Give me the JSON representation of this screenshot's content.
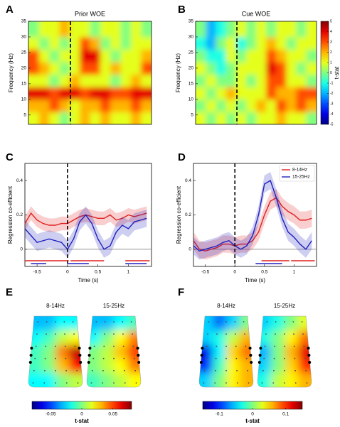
{
  "chart_data": [
    {
      "type": "heatmap",
      "label": "A",
      "title": "Prior WOE",
      "ylabel": "Frequency (Hz)",
      "xlim": [
        -0.7,
        1.35
      ],
      "ylim": [
        2,
        35
      ],
      "yticks": [
        5,
        10,
        15,
        20,
        25,
        30,
        35
      ],
      "vline": 0,
      "x": [
        -0.61,
        -0.44,
        -0.27,
        -0.1,
        0.07,
        0.24,
        0.41,
        0.58,
        0.75,
        0.92,
        1.09,
        1.26
      ],
      "y": [
        4,
        8,
        12,
        16,
        20,
        24,
        28,
        32
      ],
      "z": [
        [
          1,
          2,
          1,
          0,
          1,
          2,
          1,
          2,
          1,
          1,
          2,
          1
        ],
        [
          2,
          2,
          3,
          2,
          1,
          2,
          2,
          3,
          2,
          2,
          3,
          2
        ],
        [
          4,
          4,
          3,
          4,
          4,
          3,
          4,
          4,
          3,
          3,
          4,
          4
        ],
        [
          1,
          1,
          0,
          1,
          2,
          1,
          1,
          1,
          0,
          1,
          2,
          1
        ],
        [
          3,
          2,
          1,
          0,
          1,
          3,
          3,
          1,
          2,
          1,
          1,
          3
        ],
        [
          3,
          1,
          0,
          1,
          1,
          4,
          4,
          1,
          0,
          1,
          1,
          2
        ],
        [
          1,
          0,
          1,
          0,
          1,
          3,
          2,
          0,
          1,
          0,
          1,
          1
        ],
        [
          0,
          1,
          1,
          2,
          1,
          1,
          0,
          1,
          1,
          0,
          1,
          0
        ]
      ],
      "clim": [
        -5,
        5
      ],
      "colorbar": false
    },
    {
      "type": "heatmap",
      "label": "B",
      "title": "Cue WOE",
      "ylabel": "Frequency (Hz)",
      "xlim": [
        -0.7,
        1.35
      ],
      "ylim": [
        2,
        35
      ],
      "yticks": [
        5,
        10,
        15,
        20,
        25,
        30,
        35
      ],
      "vline": 0,
      "x": [
        -0.61,
        -0.44,
        -0.27,
        -0.1,
        0.07,
        0.24,
        0.41,
        0.58,
        0.75,
        0.92,
        1.09,
        1.26
      ],
      "y": [
        4,
        8,
        12,
        16,
        20,
        24,
        28,
        32
      ],
      "z": [
        [
          1,
          0,
          1,
          0,
          1,
          0,
          1,
          1,
          2,
          1,
          1,
          0
        ],
        [
          0,
          1,
          0,
          1,
          0,
          1,
          2,
          1,
          3,
          2,
          3,
          2
        ],
        [
          1,
          0,
          1,
          2,
          1,
          1,
          1,
          3,
          2,
          2,
          3,
          3
        ],
        [
          0,
          1,
          0,
          0,
          1,
          0,
          1,
          3,
          3,
          1,
          1,
          0
        ],
        [
          1,
          0,
          -1,
          0,
          1,
          1,
          1,
          4,
          3,
          1,
          0,
          1
        ],
        [
          0,
          -1,
          -1,
          1,
          0,
          1,
          1,
          3,
          2,
          1,
          1,
          0
        ],
        [
          -1,
          -2,
          0,
          1,
          -1,
          0,
          1,
          2,
          1,
          0,
          1,
          1
        ],
        [
          0,
          -2,
          -1,
          0,
          1,
          0,
          1,
          0,
          1,
          1,
          0,
          1
        ]
      ],
      "clim": [
        -5,
        5
      ],
      "colorbar": true,
      "cticks": [
        5,
        4,
        3,
        2,
        1,
        0,
        -1,
        -2,
        -3,
        -4,
        -5
      ],
      "colorbar_label": "t-stat"
    },
    {
      "type": "line",
      "label": "C",
      "xlabel": "Time (s)",
      "ylabel": "Regression co-efficient",
      "xlim": [
        -0.7,
        1.38
      ],
      "ylim": [
        -0.1,
        0.5
      ],
      "xticks": [
        -0.5,
        0,
        0.5,
        1
      ],
      "yticks": [
        0,
        0.2,
        0.4
      ],
      "vline": 0,
      "legend": false,
      "x": [
        -0.7,
        -0.6,
        -0.5,
        -0.4,
        -0.3,
        -0.2,
        -0.1,
        0,
        0.1,
        0.2,
        0.3,
        0.4,
        0.5,
        0.6,
        0.7,
        0.8,
        0.9,
        1.0,
        1.1,
        1.2,
        1.3
      ],
      "series": [
        {
          "color": "#e02020",
          "values": [
            0.15,
            0.21,
            0.17,
            0.15,
            0.14,
            0.14,
            0.15,
            0.15,
            0.17,
            0.19,
            0.2,
            0.19,
            0.18,
            0.18,
            0.2,
            0.17,
            0.18,
            0.2,
            0.19,
            0.2,
            0.21
          ],
          "errors": [
            0.04,
            0.04,
            0.04,
            0.04,
            0.04,
            0.04,
            0.04,
            0.04,
            0.04,
            0.04,
            0.04,
            0.04,
            0.04,
            0.04,
            0.04,
            0.04,
            0.04,
            0.04,
            0.04,
            0.04,
            0.04
          ]
        },
        {
          "color": "#2020c0",
          "values": [
            0.12,
            0.08,
            0.04,
            0.05,
            0.06,
            0.05,
            0.04,
            0.0,
            0.06,
            0.16,
            0.2,
            0.15,
            0.06,
            0.0,
            0.02,
            0.1,
            0.14,
            0.12,
            0.16,
            0.17,
            0.18
          ],
          "errors": [
            0.05,
            0.05,
            0.05,
            0.05,
            0.05,
            0.05,
            0.05,
            0.05,
            0.05,
            0.05,
            0.05,
            0.05,
            0.05,
            0.05,
            0.05,
            0.05,
            0.05,
            0.05,
            0.05,
            0.05,
            0.05
          ]
        }
      ],
      "sig_bars": [
        {
          "series": 0,
          "start": -0.7,
          "end": 0.02
        },
        {
          "series": 0,
          "start": 0.05,
          "end": 0.6
        },
        {
          "series": 0,
          "start": 0.95,
          "end": 1.35
        },
        {
          "series": 1,
          "start": -0.6,
          "end": -0.35
        },
        {
          "series": 1,
          "start": 0.0,
          "end": 0.35
        },
        {
          "series": 1,
          "start": 0.95,
          "end": 1.3
        }
      ]
    },
    {
      "type": "line",
      "label": "D",
      "xlabel": "Time (s)",
      "ylabel": "Regression co-efficient",
      "xlim": [
        -0.7,
        1.38
      ],
      "ylim": [
        -0.1,
        0.5
      ],
      "xticks": [
        -0.5,
        0,
        0.5,
        1
      ],
      "yticks": [
        0,
        0.2,
        0.4
      ],
      "vline": 0,
      "legend": true,
      "legend_loc": "upper right",
      "x": [
        -0.7,
        -0.6,
        -0.5,
        -0.4,
        -0.3,
        -0.2,
        -0.1,
        0,
        0.1,
        0.2,
        0.3,
        0.4,
        0.5,
        0.6,
        0.7,
        0.8,
        0.9,
        1.0,
        1.1,
        1.2,
        1.3
      ],
      "series": [
        {
          "name": "8-14Hz",
          "color": "#e02020",
          "values": [
            0.05,
            0.0,
            -0.01,
            0.0,
            0.01,
            0.03,
            0.03,
            0.02,
            0.03,
            0.03,
            0.05,
            0.1,
            0.2,
            0.28,
            0.3,
            0.25,
            0.22,
            0.2,
            0.17,
            0.17,
            0.18
          ],
          "errors": [
            0.05,
            0.05,
            0.05,
            0.05,
            0.05,
            0.05,
            0.05,
            0.05,
            0.05,
            0.05,
            0.05,
            0.05,
            0.05,
            0.05,
            0.05,
            0.05,
            0.05,
            0.05,
            0.05,
            0.05,
            0.05
          ]
        },
        {
          "name": "15-25Hz",
          "color": "#2020c0",
          "values": [
            0.02,
            -0.01,
            0.0,
            0.01,
            0.02,
            0.04,
            0.05,
            0.02,
            0.0,
            0.02,
            0.08,
            0.2,
            0.38,
            0.4,
            0.3,
            0.18,
            0.1,
            0.07,
            0.03,
            0.0,
            0.05
          ],
          "errors": [
            0.05,
            0.05,
            0.05,
            0.05,
            0.05,
            0.05,
            0.05,
            0.05,
            0.05,
            0.05,
            0.05,
            0.05,
            0.05,
            0.05,
            0.05,
            0.05,
            0.05,
            0.05,
            0.05,
            0.05,
            0.05
          ]
        }
      ],
      "sig_bars": [
        {
          "series": 0,
          "start": 0.45,
          "end": 0.92
        },
        {
          "series": 0,
          "start": 0.95,
          "end": 1.35
        },
        {
          "series": 1,
          "start": 0.35,
          "end": 0.8
        }
      ]
    },
    {
      "type": "topomap",
      "label": "E",
      "clim": [
        -0.08,
        0.08
      ],
      "cticks": [
        -0.05,
        0,
        0.05
      ],
      "colorbar_label": "t-stat",
      "maps": [
        {
          "name": "8-14Hz",
          "z": [
            [
              -0.03,
              -0.03,
              -0.02,
              -0.02
            ],
            [
              -0.02,
              -0.01,
              0.01,
              0.02
            ],
            [
              -0.01,
              0.0,
              0.04,
              0.07
            ],
            [
              -0.01,
              0.0,
              0.03,
              0.06
            ],
            [
              -0.02,
              -0.02,
              0.0,
              0.01
            ]
          ]
        },
        {
          "name": "15-25Hz",
          "z": [
            [
              -0.03,
              -0.03,
              -0.02,
              -0.01
            ],
            [
              -0.02,
              0.0,
              0.02,
              0.04
            ],
            [
              0.0,
              0.01,
              0.03,
              0.05
            ],
            [
              0.0,
              0.01,
              0.02,
              0.04
            ],
            [
              -0.01,
              0.0,
              0.01,
              0.02
            ]
          ]
        }
      ]
    },
    {
      "type": "topomap",
      "label": "F",
      "clim": [
        -0.15,
        0.15
      ],
      "cticks": [
        -0.1,
        0,
        0.1
      ],
      "colorbar_label": "t-stat",
      "maps": [
        {
          "name": "8-14Hz",
          "z": [
            [
              -0.05,
              -0.08,
              -0.05,
              0.0
            ],
            [
              -0.05,
              -0.03,
              0.02,
              0.06
            ],
            [
              -0.12,
              -0.04,
              0.05,
              0.08
            ],
            [
              -0.1,
              -0.02,
              0.04,
              0.06
            ],
            [
              -0.05,
              0.0,
              0.04,
              0.06
            ]
          ]
        },
        {
          "name": "15-25Hz",
          "z": [
            [
              -0.05,
              -0.03,
              0.0,
              0.03
            ],
            [
              -0.03,
              0.0,
              0.04,
              0.08
            ],
            [
              -0.06,
              0.0,
              0.06,
              0.12
            ],
            [
              -0.05,
              0.0,
              0.05,
              0.1
            ],
            [
              -0.03,
              0.02,
              0.04,
              0.06
            ]
          ]
        }
      ]
    }
  ]
}
